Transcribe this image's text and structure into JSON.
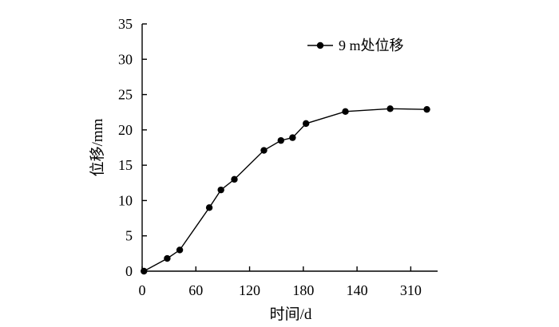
{
  "chart_data": {
    "type": "line",
    "title": "",
    "xlabel": "时间/d",
    "ylabel": "位移/mm",
    "x_tick_labels": [
      "0",
      "60",
      "120",
      "180",
      "140",
      "310"
    ],
    "y_ticks": [
      0,
      5,
      10,
      15,
      20,
      25,
      30,
      35
    ],
    "ylim": [
      0,
      35
    ],
    "grid": false,
    "legend_position": "top-right",
    "series": [
      {
        "name": "9 m处位移",
        "color": "#000000",
        "marker": "circle",
        "points": [
          {
            "x": 2,
            "y": 0
          },
          {
            "x": 28,
            "y": 1.8
          },
          {
            "x": 42,
            "y": 3.0
          },
          {
            "x": 75,
            "y": 9.0
          },
          {
            "x": 88,
            "y": 11.5
          },
          {
            "x": 103,
            "y": 13.0
          },
          {
            "x": 136,
            "y": 17.1
          },
          {
            "x": 155,
            "y": 18.5
          },
          {
            "x": 168,
            "y": 18.9
          },
          {
            "x": 183,
            "y": 20.9
          },
          {
            "x": 227,
            "y": 22.6
          },
          {
            "x": 277,
            "y": 23.0
          },
          {
            "x": 318,
            "y": 22.9
          }
        ]
      }
    ]
  }
}
